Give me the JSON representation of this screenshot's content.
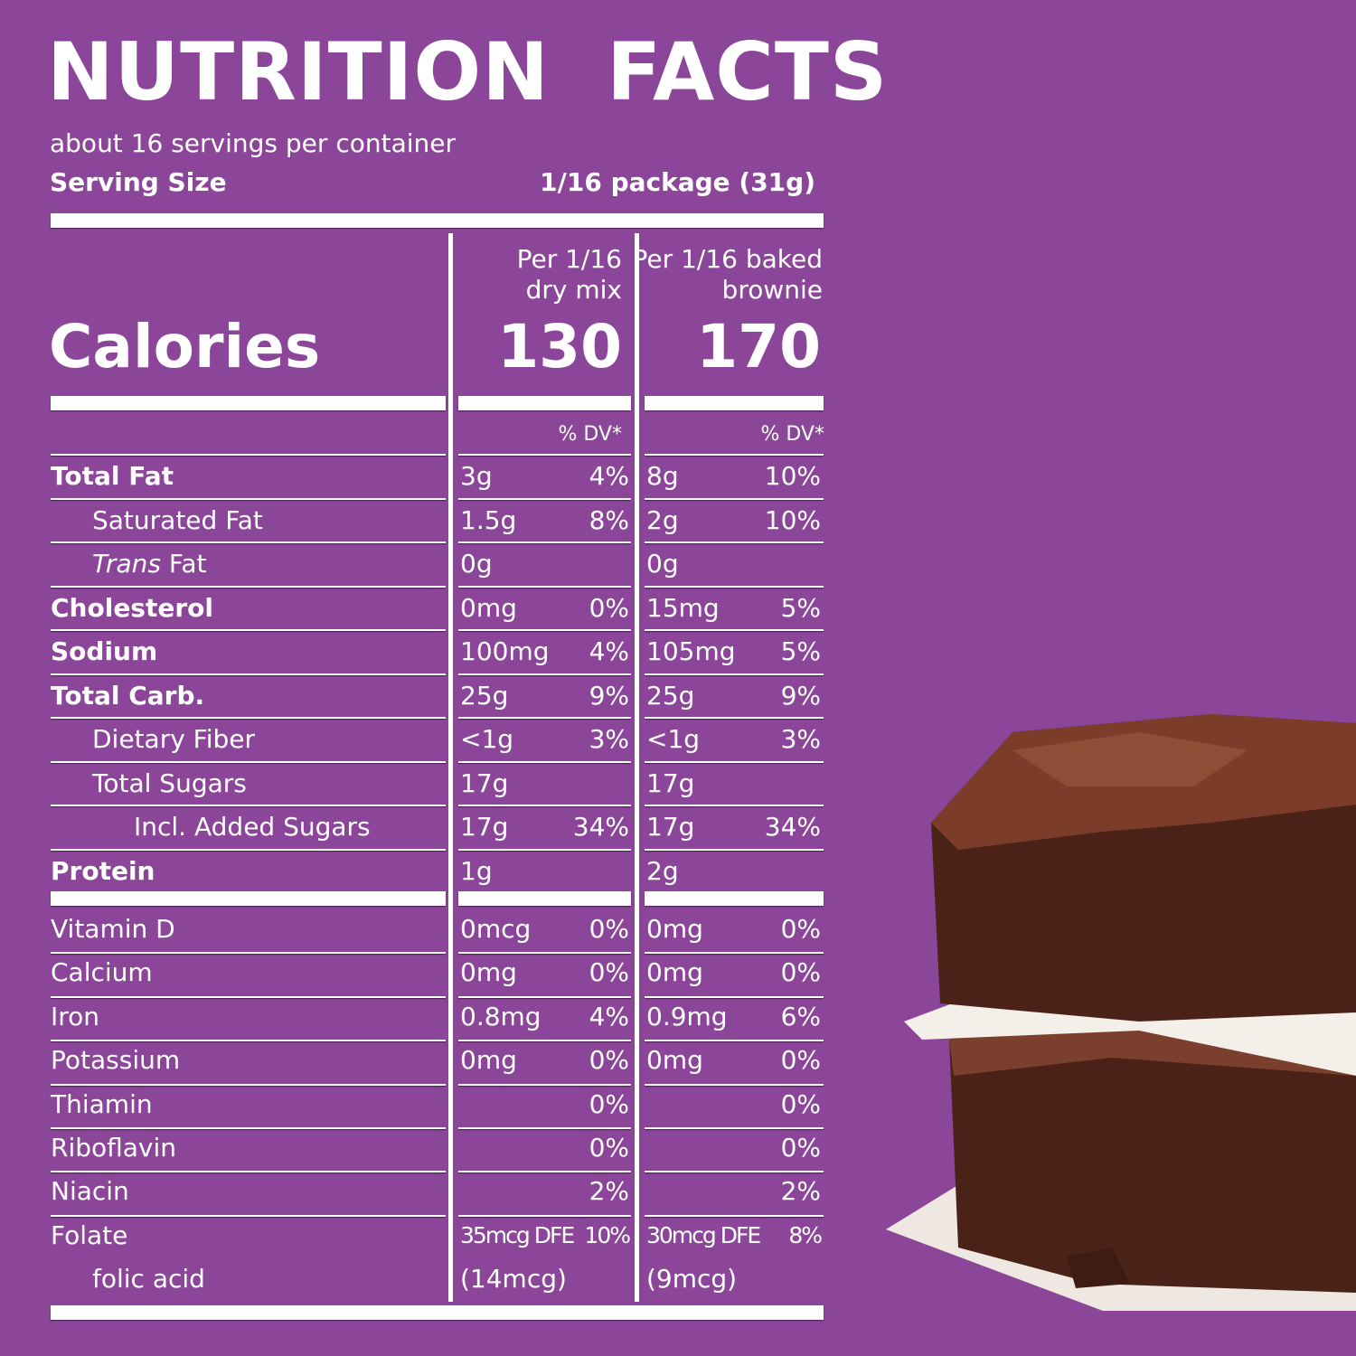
{
  "title": "NUTRITION  FACTS",
  "servings_per_container": "about 16 servings per container",
  "serving_size": {
    "label": "Serving Size",
    "value": "1/16 package (31g)"
  },
  "calories": {
    "label": "Calories",
    "columns": [
      {
        "header_line1": "Per 1/16",
        "header_line2": "dry mix",
        "value": "130"
      },
      {
        "header_line1": "Per 1/16 baked",
        "header_line2": "brownie",
        "value": "170"
      }
    ]
  },
  "dv_header": "% DV*",
  "nutrients": [
    {
      "name": "Total Fat",
      "bold": true,
      "indent": 0,
      "c1_amt": "3g",
      "c1_dv": "4%",
      "c2_amt": "8g",
      "c2_dv": "10%"
    },
    {
      "name": "Saturated Fat",
      "bold": false,
      "indent": 1,
      "c1_amt": "1.5g",
      "c1_dv": "8%",
      "c2_amt": "2g",
      "c2_dv": "10%"
    },
    {
      "name": "Trans Fat",
      "italic_prefix": "Trans",
      "name_suffix": " Fat",
      "bold": false,
      "indent": 1,
      "c1_amt": "0g",
      "c1_dv": "",
      "c2_amt": "0g",
      "c2_dv": ""
    },
    {
      "name": "Cholesterol",
      "bold": true,
      "indent": 0,
      "c1_amt": "0mg",
      "c1_dv": "0%",
      "c2_amt": "15mg",
      "c2_dv": "5%"
    },
    {
      "name": "Sodium",
      "bold": true,
      "indent": 0,
      "c1_amt": "100mg",
      "c1_dv": "4%",
      "c2_amt": "105mg",
      "c2_dv": "5%"
    },
    {
      "name": "Total Carb.",
      "bold": true,
      "indent": 0,
      "c1_amt": "25g",
      "c1_dv": "9%",
      "c2_amt": "25g",
      "c2_dv": "9%"
    },
    {
      "name": "Dietary Fiber",
      "bold": false,
      "indent": 1,
      "c1_amt": "<1g",
      "c1_dv": "3%",
      "c2_amt": "<1g",
      "c2_dv": "3%"
    },
    {
      "name": "Total Sugars",
      "bold": false,
      "indent": 1,
      "c1_amt": "17g",
      "c1_dv": "",
      "c2_amt": "17g",
      "c2_dv": ""
    },
    {
      "name": "Incl. Added Sugars",
      "bold": false,
      "indent": 2,
      "c1_amt": "17g",
      "c1_dv": "34%",
      "c2_amt": "17g",
      "c2_dv": "34%"
    },
    {
      "name": "Protein",
      "bold": true,
      "indent": 0,
      "c1_amt": "1g",
      "c1_dv": "",
      "c2_amt": "2g",
      "c2_dv": ""
    }
  ],
  "vitamins": [
    {
      "name": "Vitamin D",
      "indent": 0,
      "c1_amt": "0mcg",
      "c1_dv": "0%",
      "c2_amt": "0mg",
      "c2_dv": "0%"
    },
    {
      "name": "Calcium",
      "indent": 0,
      "c1_amt": "0mg",
      "c1_dv": "0%",
      "c2_amt": "0mg",
      "c2_dv": "0%"
    },
    {
      "name": "Iron",
      "indent": 0,
      "c1_amt": "0.8mg",
      "c1_dv": "4%",
      "c2_amt": "0.9mg",
      "c2_dv": "6%"
    },
    {
      "name": "Potassium",
      "indent": 0,
      "c1_amt": "0mg",
      "c1_dv": "0%",
      "c2_amt": "0mg",
      "c2_dv": "0%"
    },
    {
      "name": "Thiamin",
      "indent": 0,
      "c1_amt": "",
      "c1_dv": "0%",
      "c2_amt": "",
      "c2_dv": "0%"
    },
    {
      "name": "Riboflavin",
      "indent": 0,
      "c1_amt": "",
      "c1_dv": "0%",
      "c2_amt": "",
      "c2_dv": "0%"
    },
    {
      "name": "Niacin",
      "indent": 0,
      "c1_amt": "",
      "c1_dv": "2%",
      "c2_amt": "",
      "c2_dv": "2%"
    },
    {
      "name": "Folate",
      "indent": 0,
      "c1_amt": "35mcg DFE",
      "c1_dv": "10%",
      "c2_amt": "30mcg DFE",
      "c2_dv": "8%",
      "folate": true
    },
    {
      "name": "folic acid",
      "indent": 1,
      "c1_amt": "(14mcg)",
      "c1_dv": "",
      "c2_amt": "(9mcg)",
      "c2_dv": "",
      "noline": true
    }
  ],
  "colors": {
    "background": "#8c4699",
    "text": "#ffffff",
    "brownie": "#4a2218"
  },
  "image": {
    "icon": "brownie-stack-photo"
  }
}
